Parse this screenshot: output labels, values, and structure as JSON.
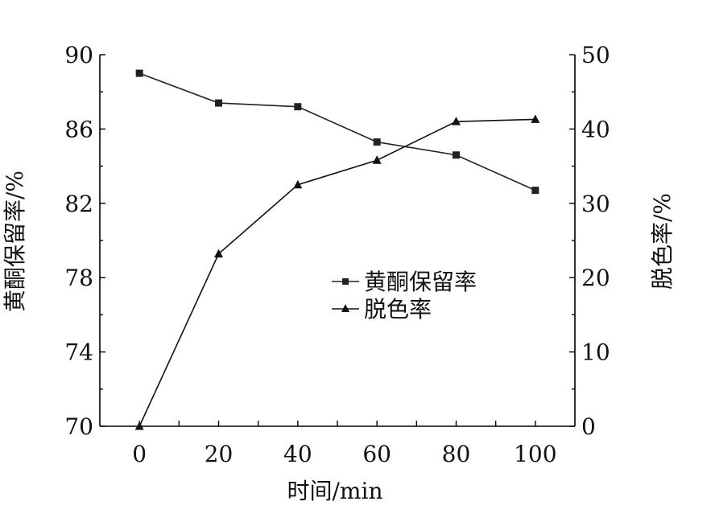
{
  "chart_data": {
    "type": "line",
    "x": [
      0,
      20,
      40,
      60,
      80,
      100
    ],
    "xlabel": "时间/min",
    "xticks": [
      0,
      20,
      40,
      60,
      80,
      100
    ],
    "xlim": [
      -10,
      110
    ],
    "left_axis": {
      "label": "黄酮保留率/%",
      "ylim": [
        70,
        90
      ],
      "ticks": [
        70,
        74,
        78,
        82,
        86,
        90
      ]
    },
    "right_axis": {
      "label": "脱色率/%",
      "ylim": [
        0,
        50
      ],
      "ticks": [
        0,
        10,
        20,
        30,
        40,
        50
      ]
    },
    "series": [
      {
        "name": "黄酮保留率",
        "axis": "left",
        "marker": "square",
        "color": "#222222",
        "values": [
          89.0,
          87.4,
          87.2,
          85.3,
          84.6,
          82.7
        ]
      },
      {
        "name": "脱色率",
        "axis": "right",
        "marker": "triangle",
        "color": "#111111",
        "values": [
          0,
          23.2,
          32.5,
          35.8,
          41.0,
          41.3
        ]
      }
    ],
    "legend": "center-right",
    "grid": false
  }
}
